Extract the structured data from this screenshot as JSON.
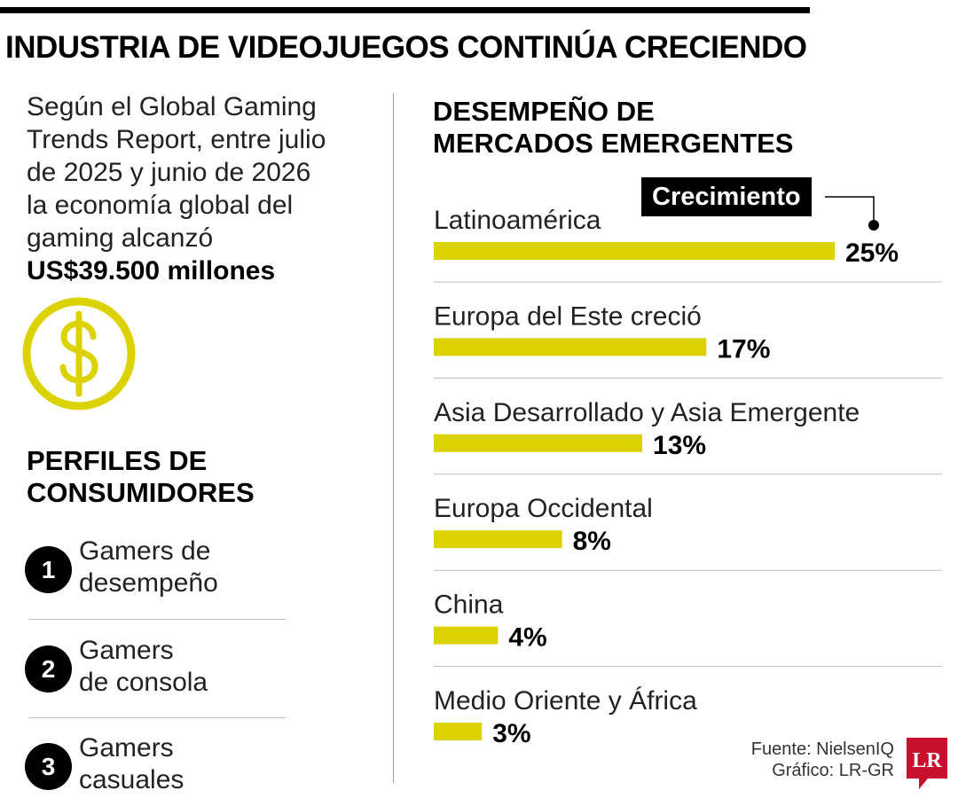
{
  "title": "INDUSTRIA DE VIDEOJUEGOS CONTINÚA CRECIENDO",
  "intro": {
    "lines": [
      "Según el Global Gaming",
      "Trends Report, entre julio",
      "de 2025 y junio de 2026",
      "la economía global del",
      "gaming alcanzó"
    ],
    "amount": "US$39.500 millones"
  },
  "profiles": {
    "title_lines": [
      "PERFILES DE",
      "CONSUMIDORES"
    ],
    "items": [
      {
        "number": "1",
        "lines": [
          "Gamers de",
          "desempeño"
        ]
      },
      {
        "number": "2",
        "lines": [
          "Gamers",
          "de consola"
        ]
      },
      {
        "number": "3",
        "lines": [
          "Gamers",
          "casuales"
        ]
      }
    ]
  },
  "chart_data": {
    "type": "bar",
    "orientation": "horizontal",
    "title_lines": [
      "DESEMPEÑO DE",
      "MERCADOS EMERGENTES"
    ],
    "legend": "Crecimiento",
    "categories": [
      "Latinoamérica",
      "Europa del Este creció",
      "Asia Desarrollado y Asia Emergente",
      "Europa Occidental",
      "China",
      "Medio Oriente y África"
    ],
    "values": [
      25,
      17,
      13,
      8,
      4,
      3
    ],
    "value_labels": [
      "25%",
      "17%",
      "13%",
      "8%",
      "4%",
      "3%"
    ],
    "unit": "%",
    "bar_color": "#dcd200",
    "grid": false
  },
  "source": {
    "lines": [
      "Fuente: NielsenIQ",
      "Gráfico: LR-GR"
    ]
  },
  "logo": {
    "text": "LR",
    "color": "#c8102e"
  },
  "colors": {
    "accent": "#dcd200",
    "text": "#1a1a1a",
    "rule": "#000000"
  }
}
